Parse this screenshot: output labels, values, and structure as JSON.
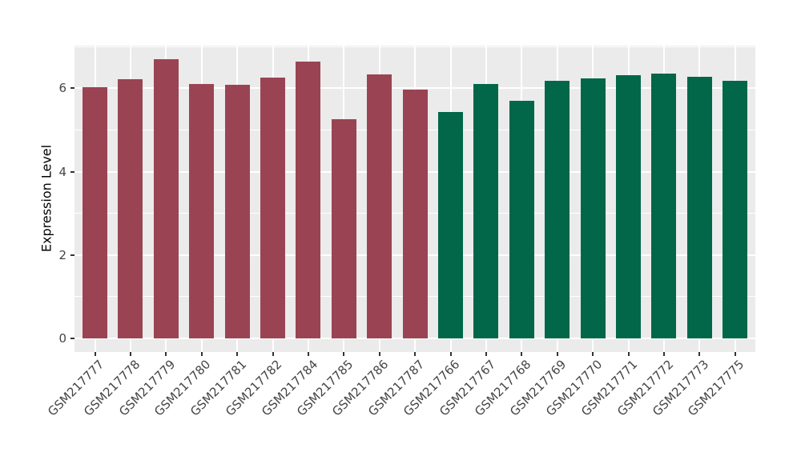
{
  "chart_data": {
    "type": "bar",
    "title": "",
    "xlabel": "",
    "ylabel": "Expression Level",
    "ylim": [
      0,
      7.04
    ],
    "yticks": [
      0,
      2,
      4,
      6
    ],
    "minor_gridlines": [
      1,
      3,
      5,
      7
    ],
    "grid": true,
    "legend": "none",
    "bars": [
      {
        "label": "GSM217777",
        "value": 6.02,
        "group": "maroon"
      },
      {
        "label": "GSM217778",
        "value": 6.21,
        "group": "maroon"
      },
      {
        "label": "GSM217779",
        "value": 6.7,
        "group": "maroon"
      },
      {
        "label": "GSM217780",
        "value": 6.11,
        "group": "maroon"
      },
      {
        "label": "GSM217781",
        "value": 6.09,
        "group": "maroon"
      },
      {
        "label": "GSM217782",
        "value": 6.25,
        "group": "maroon"
      },
      {
        "label": "GSM217784",
        "value": 6.65,
        "group": "maroon"
      },
      {
        "label": "GSM217785",
        "value": 5.26,
        "group": "maroon"
      },
      {
        "label": "GSM217786",
        "value": 6.33,
        "group": "maroon"
      },
      {
        "label": "GSM217787",
        "value": 5.96,
        "group": "maroon"
      },
      {
        "label": "GSM217766",
        "value": 5.43,
        "group": "green"
      },
      {
        "label": "GSM217767",
        "value": 6.11,
        "group": "green"
      },
      {
        "label": "GSM217768",
        "value": 5.7,
        "group": "green"
      },
      {
        "label": "GSM217769",
        "value": 6.18,
        "group": "green"
      },
      {
        "label": "GSM217770",
        "value": 6.23,
        "group": "green"
      },
      {
        "label": "GSM217771",
        "value": 6.31,
        "group": "green"
      },
      {
        "label": "GSM217772",
        "value": 6.36,
        "group": "green"
      },
      {
        "label": "GSM217773",
        "value": 6.27,
        "group": "green"
      },
      {
        "label": "GSM217775",
        "value": 6.18,
        "group": "green"
      }
    ],
    "group_colors": {
      "maroon": "#9A4453",
      "green": "#026649"
    },
    "colors": {
      "panel_background": "#EBEBEB",
      "gridline": "#FFFFFF",
      "axis_text": "#454545",
      "axis_title": "#000000",
      "tick_mark": "#333333",
      "figure_background": "#FFFFFF"
    }
  }
}
